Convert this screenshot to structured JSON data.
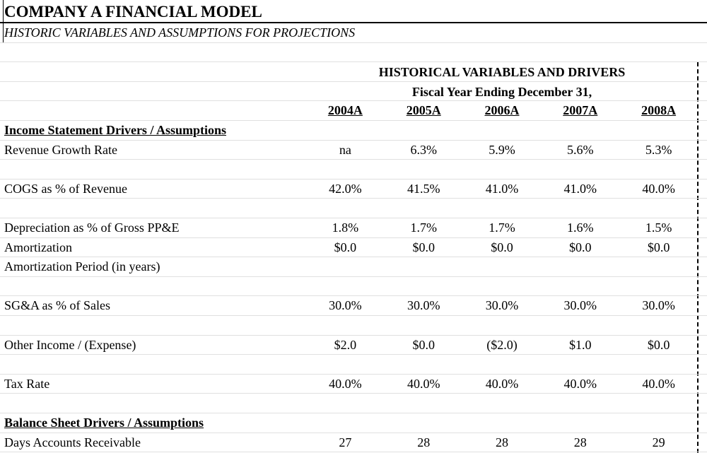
{
  "header": {
    "title": "COMPANY A FINANCIAL MODEL",
    "subtitle": "HISTORIC VARIABLES AND ASSUMPTIONS FOR PROJECTIONS"
  },
  "table": {
    "heading": "HISTORICAL VARIABLES AND DRIVERS",
    "subheading": "Fiscal Year Ending December 31,",
    "columns": [
      "2004A",
      "2005A",
      "2006A",
      "2007A",
      "2008A"
    ],
    "sections": [
      {
        "title": "Income Statement Drivers / Assumptions",
        "rows": [
          {
            "label": "Revenue Growth Rate",
            "values": [
              "na",
              "6.3%",
              "5.9%",
              "5.6%",
              "5.3%"
            ]
          },
          {
            "label": "COGS as % of Revenue",
            "values": [
              "42.0%",
              "41.5%",
              "41.0%",
              "41.0%",
              "40.0%"
            ]
          },
          {
            "label": "Depreciation as % of Gross PP&E",
            "values": [
              "1.8%",
              "1.7%",
              "1.7%",
              "1.6%",
              "1.5%"
            ]
          },
          {
            "label": "Amortization",
            "values": [
              "$0.0",
              "$0.0",
              "$0.0",
              "$0.0",
              "$0.0"
            ]
          },
          {
            "label": "Amortization Period (in years)"
          },
          {
            "label": "SG&A as % of Sales",
            "values": [
              "30.0%",
              "30.0%",
              "30.0%",
              "30.0%",
              "30.0%"
            ]
          },
          {
            "label": "Other Income / (Expense)",
            "values": [
              "$2.0",
              "$0.0",
              "($2.0)",
              "$1.0",
              "$0.0"
            ]
          },
          {
            "label": "Tax Rate",
            "values": [
              "40.0%",
              "40.0%",
              "40.0%",
              "40.0%",
              "40.0%"
            ]
          }
        ]
      },
      {
        "title": "Balance Sheet Drivers / Assumptions",
        "rows": [
          {
            "label": "Days Accounts Receivable",
            "values": [
              "27",
              "28",
              "28",
              "28",
              "29"
            ]
          }
        ]
      }
    ]
  }
}
